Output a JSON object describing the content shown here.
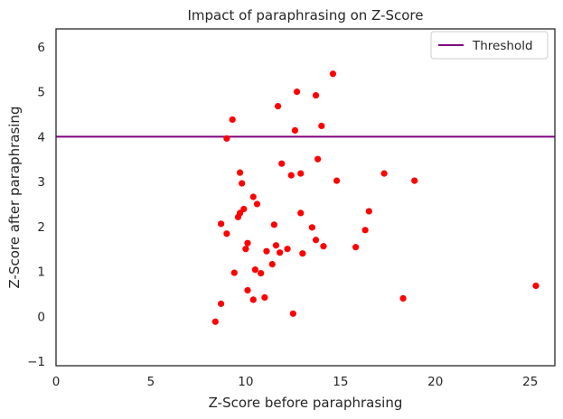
{
  "chart_data": {
    "type": "scatter",
    "title": "Impact of paraphrasing on Z-Score",
    "xlabel": "Z-Score before paraphrasing",
    "ylabel": "Z-Score after paraphrasing",
    "xlim": [
      0,
      26.3
    ],
    "ylim": [
      -1.1,
      6.4
    ],
    "xticks": [
      0,
      5,
      10,
      15,
      20,
      25
    ],
    "yticks": [
      -1,
      0,
      1,
      2,
      3,
      4,
      5,
      6
    ],
    "grid": false,
    "legend": {
      "position": "top-right",
      "entries": [
        {
          "label": "Threshold",
          "color": "#800080",
          "marker": "line"
        }
      ]
    },
    "threshold": {
      "label": "Threshold",
      "y": 4.0,
      "color": "#800080"
    },
    "series": [
      {
        "color": "#ff0000",
        "points": [
          [
            8.4,
            -0.12
          ],
          [
            8.7,
            0.28
          ],
          [
            8.7,
            2.06
          ],
          [
            9.0,
            1.84
          ],
          [
            9.0,
            3.96
          ],
          [
            9.3,
            4.38
          ],
          [
            9.4,
            0.97
          ],
          [
            9.6,
            2.21
          ],
          [
            9.7,
            2.3
          ],
          [
            9.7,
            3.2
          ],
          [
            9.8,
            2.96
          ],
          [
            9.9,
            2.39
          ],
          [
            10.0,
            1.5
          ],
          [
            10.1,
            1.63
          ],
          [
            10.1,
            0.58
          ],
          [
            10.4,
            0.37
          ],
          [
            10.4,
            2.66
          ],
          [
            10.5,
            1.04
          ],
          [
            10.6,
            2.5
          ],
          [
            10.8,
            0.96
          ],
          [
            11.0,
            0.42
          ],
          [
            11.1,
            1.45
          ],
          [
            11.4,
            1.16
          ],
          [
            11.5,
            2.04
          ],
          [
            11.6,
            1.58
          ],
          [
            11.7,
            4.68
          ],
          [
            11.8,
            1.42
          ],
          [
            11.9,
            3.4
          ],
          [
            12.2,
            1.5
          ],
          [
            12.4,
            3.14
          ],
          [
            12.5,
            0.06
          ],
          [
            12.6,
            4.14
          ],
          [
            12.7,
            5.0
          ],
          [
            12.9,
            2.3
          ],
          [
            12.9,
            3.18
          ],
          [
            13.0,
            1.4
          ],
          [
            13.5,
            1.98
          ],
          [
            13.7,
            1.7
          ],
          [
            13.7,
            4.92
          ],
          [
            13.8,
            3.5
          ],
          [
            14.0,
            4.24
          ],
          [
            14.1,
            1.56
          ],
          [
            14.6,
            5.4
          ],
          [
            14.8,
            3.02
          ],
          [
            15.8,
            1.54
          ],
          [
            16.3,
            1.92
          ],
          [
            16.5,
            2.34
          ],
          [
            17.3,
            3.18
          ],
          [
            18.3,
            0.4
          ],
          [
            18.9,
            3.02
          ],
          [
            25.3,
            0.68
          ]
        ]
      }
    ]
  }
}
